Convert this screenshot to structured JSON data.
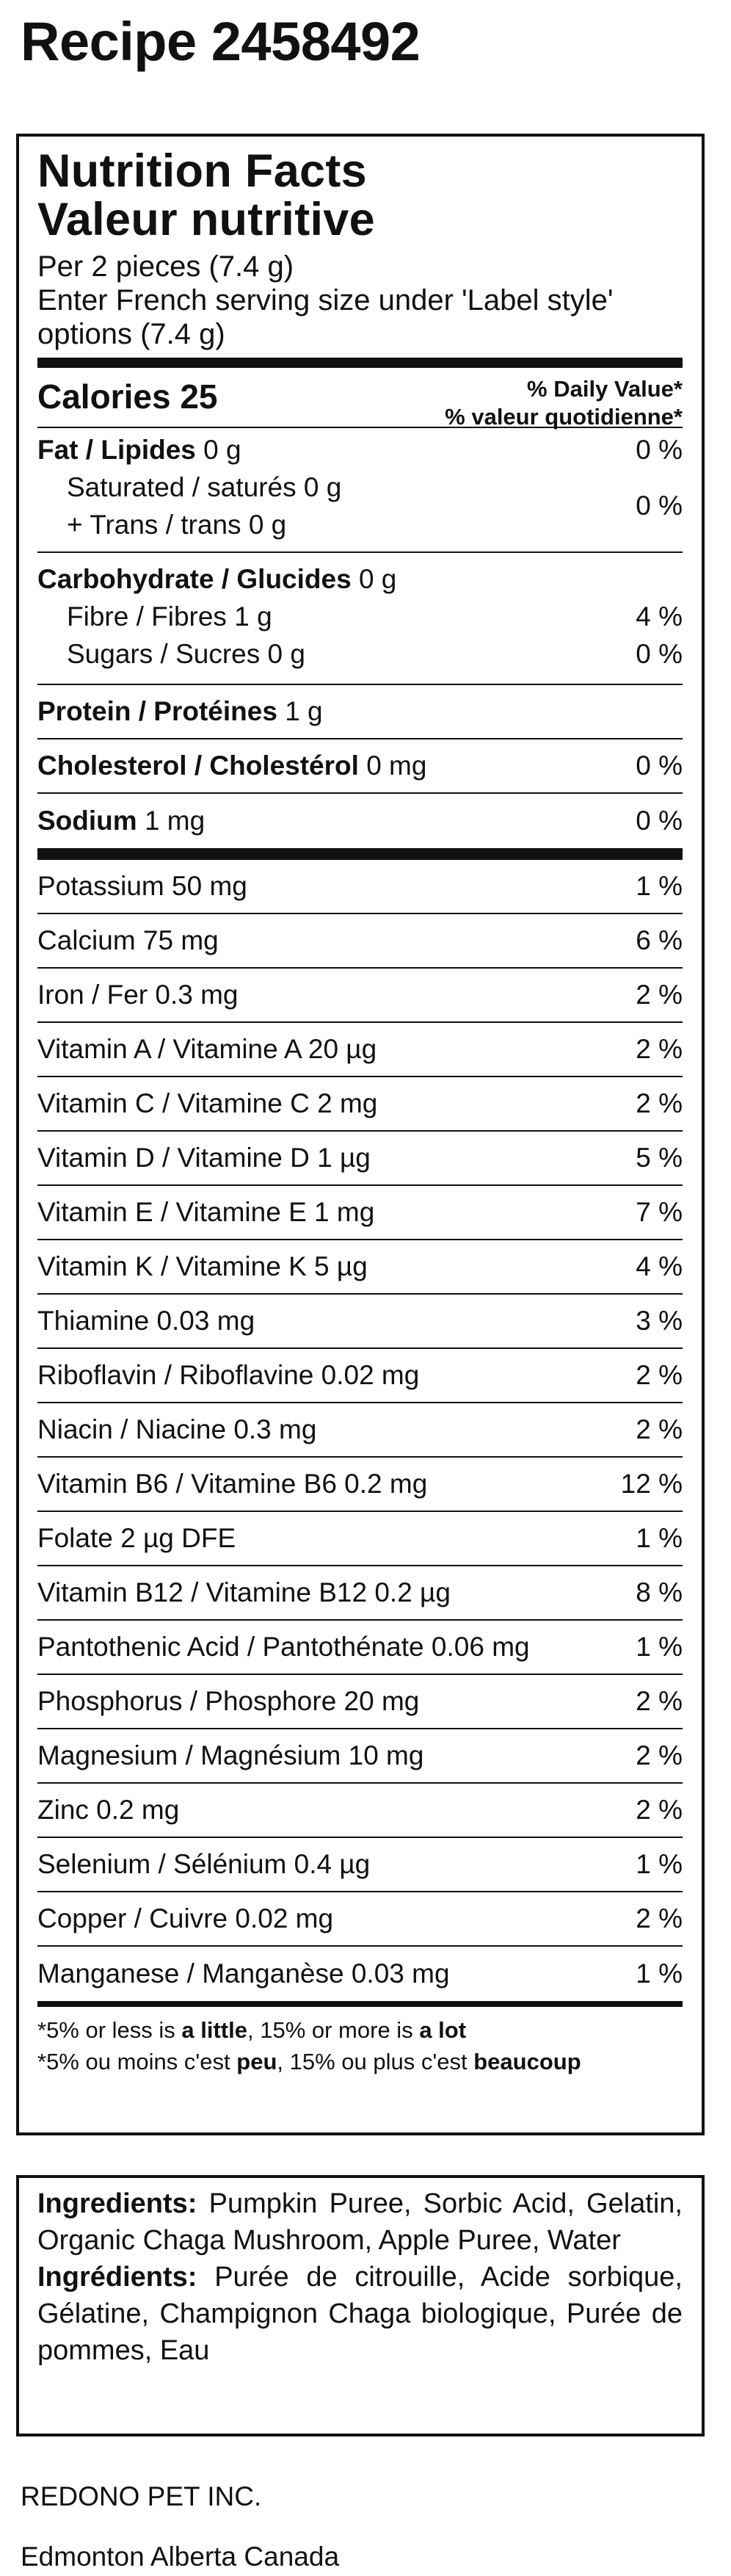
{
  "page": {
    "title": "Recipe 2458492"
  },
  "label": {
    "heading_en": "Nutrition Facts",
    "heading_fr": "Valeur nutritive",
    "serving_line1": "Per 2 pieces (7.4 g)",
    "serving_line2": "Enter French serving size under 'Label style' options (7.4 g)",
    "calories_label": "Calories",
    "calories_value": "25",
    "dv_en": "% Daily Value*",
    "dv_fr": "% valeur quotidienne*",
    "fat": {
      "label": "Fat / Lipides",
      "amount": "0 g",
      "pct": "0 %"
    },
    "saturated": {
      "label": "Saturated / saturés",
      "amount": "0 g"
    },
    "trans": {
      "label": "+ Trans / trans",
      "amount": "0 g"
    },
    "sat_trans_pct": "0 %",
    "carb": {
      "label": "Carbohydrate / Glucides",
      "amount": "0 g"
    },
    "fibre": {
      "label": "Fibre / Fibres",
      "amount": "1 g",
      "pct": "4 %"
    },
    "sugars": {
      "label": "Sugars / Sucres",
      "amount": "0 g",
      "pct": "0 %"
    },
    "protein": {
      "label": "Protein / Protéines",
      "amount": "1 g"
    },
    "cholesterol": {
      "label": "Cholesterol / Cholestérol",
      "amount": "0 mg",
      "pct": "0 %"
    },
    "sodium": {
      "label": "Sodium",
      "amount": "1 mg",
      "pct": "0 %"
    },
    "micros": [
      {
        "label": "Potassium 50 mg",
        "pct": "1 %"
      },
      {
        "label": "Calcium 75 mg",
        "pct": "6 %"
      },
      {
        "label": "Iron / Fer 0.3 mg",
        "pct": "2 %"
      },
      {
        "label": "Vitamin A / Vitamine A 20 µg",
        "pct": "2 %"
      },
      {
        "label": "Vitamin C / Vitamine C 2 mg",
        "pct": "2 %"
      },
      {
        "label": "Vitamin D / Vitamine D 1 µg",
        "pct": "5 %"
      },
      {
        "label": "Vitamin E / Vitamine E 1 mg",
        "pct": "7 %"
      },
      {
        "label": "Vitamin K / Vitamine K 5 µg",
        "pct": "4 %"
      },
      {
        "label": "Thiamine 0.03 mg",
        "pct": "3 %"
      },
      {
        "label": "Riboflavin / Riboflavine 0.02 mg",
        "pct": "2 %"
      },
      {
        "label": "Niacin / Niacine 0.3 mg",
        "pct": "2 %"
      },
      {
        "label": "Vitamin B6 / Vitamine B6 0.2 mg",
        "pct": "12 %"
      },
      {
        "label": "Folate 2 µg DFE",
        "pct": "1 %"
      },
      {
        "label": "Vitamin B12 / Vitamine B12 0.2 µg",
        "pct": "8 %"
      },
      {
        "label": "Pantothenic Acid / Pantothénate 0.06 mg",
        "pct": "1 %"
      },
      {
        "label": "Phosphorus / Phosphore 20 mg",
        "pct": "2 %"
      },
      {
        "label": "Magnesium / Magnésium 10 mg",
        "pct": "2 %"
      },
      {
        "label": "Zinc 0.2 mg",
        "pct": "2 %"
      },
      {
        "label": "Selenium / Sélénium 0.4 µg",
        "pct": "1 %"
      },
      {
        "label": "Copper / Cuivre 0.02 mg",
        "pct": "2 %"
      },
      {
        "label": "Manganese / Manganèse 0.03 mg",
        "pct": "1 %"
      }
    ],
    "footnote_en": {
      "a": "*5% or less is ",
      "b": "a little",
      "c": ", 15% or more is ",
      "d": "a lot"
    },
    "footnote_fr": {
      "a": "*5% ou moins c'est ",
      "b": "peu",
      "c": ", 15% ou plus c'est ",
      "d": "beaucoup"
    }
  },
  "ingredients": {
    "en_label": "Ingredients:",
    "en_text": " Pumpkin Puree, Sorbic Acid, Gelatin, Organic Chaga Mushroom, Apple Puree, Water",
    "fr_label": "Ingrédients:",
    "fr_text": " Purée de citrouille, Acide sorbique, Gélatine, Champignon Chaga biologique, Purée de pommes, Eau"
  },
  "company": {
    "name": "REDONO PET INC.",
    "location": "Edmonton Alberta Canada"
  }
}
